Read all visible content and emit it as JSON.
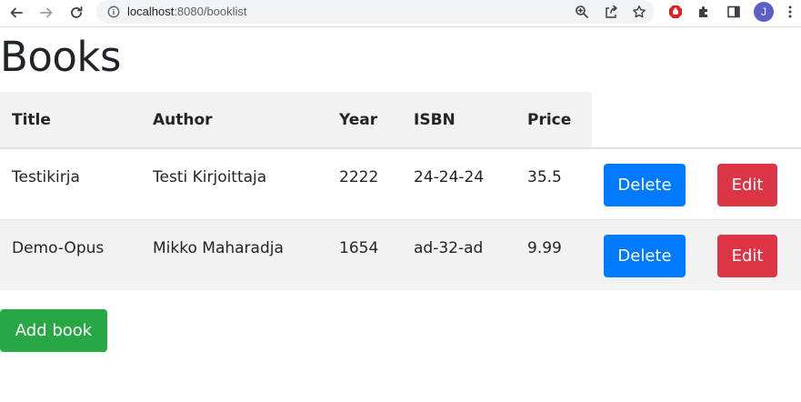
{
  "browser": {
    "url_host": "localhost",
    "url_rest": ":8080/booklist",
    "avatar_letter": "J"
  },
  "page": {
    "title": "Books",
    "columns": [
      "Title",
      "Author",
      "Year",
      "ISBN",
      "Price"
    ],
    "rows": [
      {
        "title": "Testikirja",
        "author": "Testi Kirjoittaja",
        "year": "2222",
        "isbn": "24-24-24",
        "price": "35.5",
        "delete_label": "Delete",
        "edit_label": "Edit"
      },
      {
        "title": "Demo-Opus",
        "author": "Mikko Maharadja",
        "year": "1654",
        "isbn": "ad-32-ad",
        "price": "9.99",
        "delete_label": "Delete",
        "edit_label": "Edit"
      }
    ],
    "add_button": "Add book"
  },
  "colors": {
    "delete": "#007bff",
    "edit": "#dc3545",
    "add": "#28a745",
    "avatar": "#5b5fc7"
  }
}
